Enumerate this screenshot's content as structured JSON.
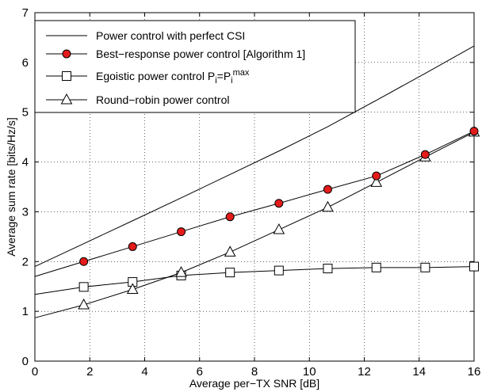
{
  "chart_data": {
    "type": "line",
    "xlabel": "Average per−TX SNR [dB]",
    "ylabel": "Average sum rate [bits/Hz/s]",
    "xlim": [
      0,
      16
    ],
    "ylim": [
      0,
      7
    ],
    "xticks": [
      "0",
      "2",
      "4",
      "6",
      "8",
      "10",
      "12",
      "14",
      "16"
    ],
    "yticks": [
      "0",
      "1",
      "2",
      "3",
      "4",
      "5",
      "6",
      "7"
    ],
    "grid": true,
    "legend_position": "top-left",
    "series": [
      {
        "name": "Power control with perfect CSI",
        "marker": "none",
        "x": [
          0,
          1.78,
          3.56,
          5.33,
          7.11,
          8.89,
          10.67,
          12.44,
          14.22,
          16
        ],
        "y": [
          1.9,
          2.36,
          2.82,
          3.28,
          3.75,
          4.22,
          4.71,
          5.24,
          5.78,
          6.33
        ]
      },
      {
        "name": "Best−response power control [Algorithm 1]",
        "marker": "circle",
        "marker_fill": "#e31b1b",
        "x": [
          0,
          1.78,
          3.56,
          5.33,
          7.11,
          8.89,
          10.67,
          12.44,
          14.22,
          16
        ],
        "y": [
          1.7,
          2.0,
          2.3,
          2.6,
          2.9,
          3.17,
          3.45,
          3.72,
          4.15,
          4.62
        ]
      },
      {
        "name_prefix": "Egoistic power control P",
        "name_sub": "i",
        "name_mid": "=P",
        "name_sub2": "i",
        "name_sup": "max",
        "marker": "square",
        "x": [
          0,
          1.78,
          3.56,
          5.33,
          7.11,
          8.89,
          10.67,
          12.44,
          14.22,
          16
        ],
        "y": [
          1.34,
          1.49,
          1.59,
          1.72,
          1.78,
          1.82,
          1.86,
          1.88,
          1.88,
          1.9
        ]
      },
      {
        "name": "Round−robin power control",
        "marker": "triangle",
        "x": [
          0,
          1.78,
          3.56,
          5.33,
          7.11,
          8.89,
          10.67,
          12.44,
          14.22,
          16
        ],
        "y": [
          0.87,
          1.13,
          1.44,
          1.78,
          2.19,
          2.64,
          3.09,
          3.59,
          4.1,
          4.6
        ]
      }
    ]
  }
}
